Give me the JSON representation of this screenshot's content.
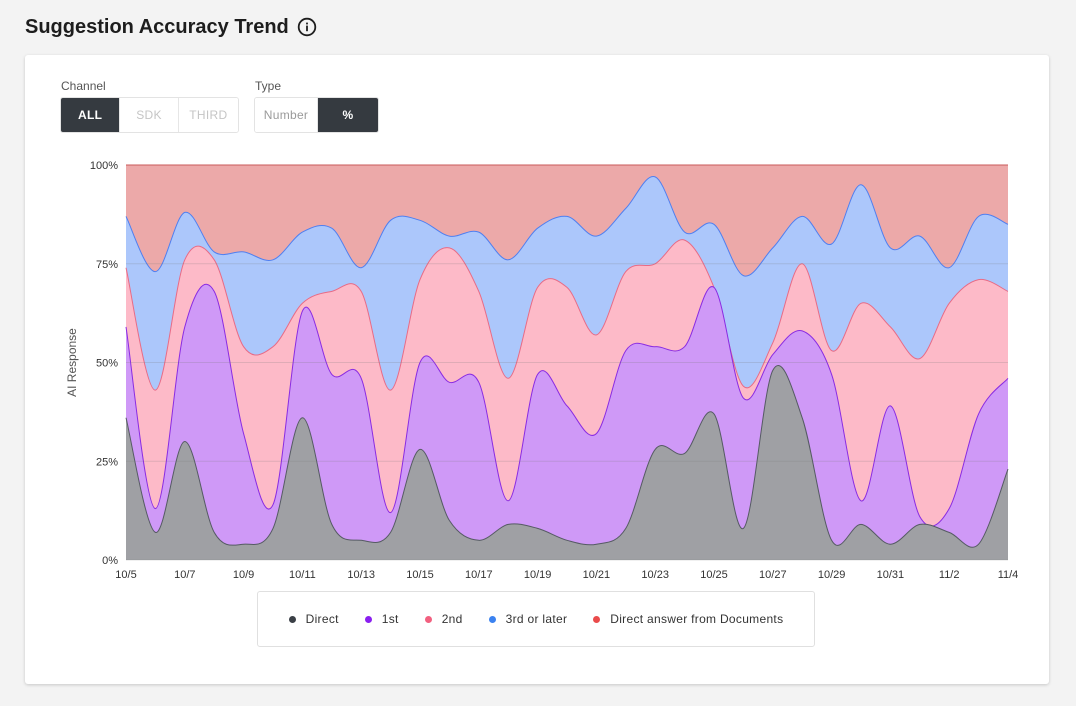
{
  "header": {
    "title": "Suggestion Accuracy Trend",
    "info_icon": "info-circle-icon"
  },
  "controls": {
    "channel": {
      "label": "Channel",
      "options": [
        "ALL",
        "SDK",
        "THIRD"
      ],
      "selected": "ALL"
    },
    "type": {
      "label": "Type",
      "options": [
        "Number",
        "%"
      ],
      "selected": "%"
    }
  },
  "chart_data": {
    "type": "area",
    "stacked": true,
    "xlabel": "",
    "ylabel": "AI Response",
    "ylim": [
      0,
      100
    ],
    "y_ticks": [
      "0%",
      "25%",
      "50%",
      "75%",
      "100%"
    ],
    "x_tick_labels": [
      "10/5",
      "10/7",
      "10/9",
      "10/11",
      "10/13",
      "10/15",
      "10/17",
      "10/19",
      "10/21",
      "10/23",
      "10/25",
      "10/27",
      "10/29",
      "10/31",
      "11/2",
      "11/4"
    ],
    "x": [
      "10/5",
      "10/6",
      "10/7",
      "10/8",
      "10/9",
      "10/10",
      "10/11",
      "10/12",
      "10/13",
      "10/14",
      "10/15",
      "10/16",
      "10/17",
      "10/18",
      "10/19",
      "10/20",
      "10/21",
      "10/22",
      "10/23",
      "10/24",
      "10/25",
      "10/26",
      "10/27",
      "10/28",
      "10/29",
      "10/30",
      "10/31",
      "11/1",
      "11/2",
      "11/3",
      "11/4"
    ],
    "series": [
      {
        "name": "Direct",
        "color": "#9fa0a4",
        "line": "#555a63",
        "values": [
          36,
          7,
          30,
          7,
          4,
          8,
          36,
          9,
          5,
          7,
          28,
          10,
          5,
          9,
          8,
          5,
          4,
          8,
          28,
          27,
          37,
          8,
          48,
          36,
          5,
          9,
          4,
          9,
          7,
          4,
          23
        ]
      },
      {
        "name": "1st",
        "color": "#cf99f7",
        "line": "#8a2be2",
        "values": [
          23,
          6,
          29,
          61,
          28,
          6,
          27,
          38,
          41,
          5,
          22,
          35,
          40,
          6,
          39,
          34,
          28,
          45,
          26,
          27,
          32,
          33,
          4,
          22,
          42,
          6,
          35,
          2,
          6,
          33,
          23
        ]
      },
      {
        "name": "2nd",
        "color": "#fdbac8",
        "line": "#e86b86",
        "values": [
          15,
          30,
          17,
          8,
          22,
          40,
          2,
          21,
          22,
          31,
          21,
          34,
          23,
          31,
          22,
          30,
          25,
          20,
          21,
          27,
          0,
          3,
          3,
          17,
          6,
          50,
          20,
          40,
          52,
          34,
          22
        ]
      },
      {
        "name": "3rd or later",
        "color": "#acc7fb",
        "line": "#4f7ff0",
        "values": [
          13,
          30,
          12,
          2,
          24,
          22,
          18,
          16,
          6,
          43,
          15,
          3,
          15,
          30,
          15,
          18,
          25,
          16,
          22,
          2,
          16,
          28,
          24,
          12,
          27,
          30,
          20,
          31,
          9,
          16,
          17
        ]
      },
      {
        "name": "Direct answer from Documents",
        "color": "#eca9a9",
        "line": "#e05353",
        "values": [
          13,
          27,
          12,
          22,
          22,
          24,
          17,
          16,
          26,
          14,
          14,
          18,
          17,
          24,
          16,
          13,
          18,
          11,
          3,
          17,
          15,
          28,
          21,
          13,
          20,
          5,
          21,
          18,
          26,
          13,
          15
        ]
      }
    ]
  }
}
